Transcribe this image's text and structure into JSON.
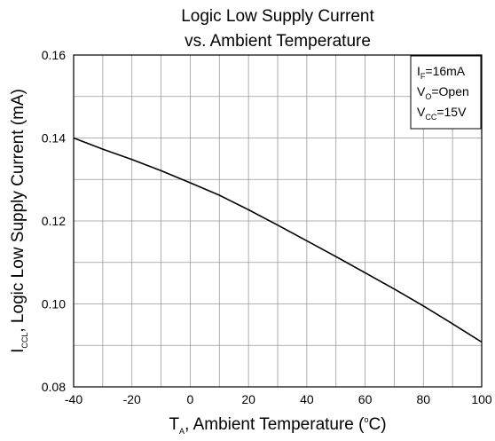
{
  "chart_data": {
    "type": "line",
    "title_line1": "Logic Low Supply Current",
    "title_line2": "vs. Ambient Temperature",
    "xlabel": {
      "main": "T",
      "sub": "A",
      "rest": ", Ambient Temperature (",
      "sup": "o",
      "end": "C)"
    },
    "ylabel": {
      "main": "I",
      "sub": "CCL",
      "rest": ", Logic Low Supply Current (mA)"
    },
    "xlim": [
      -40,
      100
    ],
    "ylim": [
      0.08,
      0.16
    ],
    "xticks": [
      -40,
      -20,
      0,
      20,
      40,
      60,
      80,
      100
    ],
    "xtick_labels": [
      "-40",
      "-20",
      "0",
      "20",
      "40",
      "60",
      "80",
      "100"
    ],
    "yticks": [
      0.08,
      0.1,
      0.12,
      0.14,
      0.16
    ],
    "ytick_labels": [
      "0.08",
      "0.10",
      "0.12",
      "0.14",
      "0.16"
    ],
    "grid": true,
    "legend_position": "top-right",
    "conditions": [
      {
        "main": "I",
        "sub": "F",
        "rest": "=16mA"
      },
      {
        "main": "V",
        "sub": "O",
        "rest": "=Open"
      },
      {
        "main": "V",
        "sub": "CC",
        "rest": "=15V"
      }
    ],
    "series": [
      {
        "x": [
          -40,
          -30,
          -20,
          -10,
          0,
          10,
          20,
          30,
          40,
          50,
          60,
          70,
          80,
          90,
          100
        ],
        "y": [
          0.14,
          0.1373,
          0.1348,
          0.1321,
          0.1292,
          0.1262,
          0.1227,
          0.119,
          0.1152,
          0.1114,
          0.1075,
          0.1036,
          0.0995,
          0.0952,
          0.0908
        ]
      }
    ]
  }
}
